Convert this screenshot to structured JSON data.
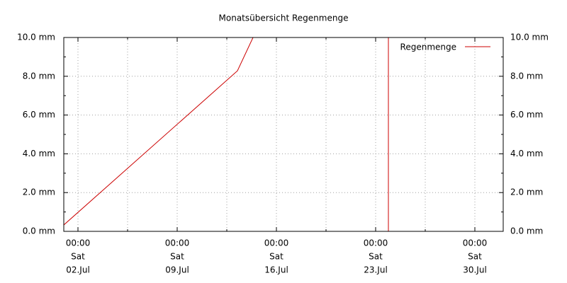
{
  "chart_data": {
    "type": "line",
    "title": "Monatsübersicht Regenmenge",
    "x": [
      1,
      13.25,
      14.35,
      19,
      23.9,
      23.9
    ],
    "series": [
      {
        "name": "Regenmenge",
        "color": "#cc0000",
        "values": [
          0.33,
          8.28,
          10,
          null,
          10,
          0
        ]
      }
    ],
    "xlim": [
      1,
      32
    ],
    "xticks": [
      {
        "value": 2,
        "label": [
          "00:00",
          "Sat",
          "02.Jul"
        ]
      },
      {
        "value": 9,
        "label": [
          "00:00",
          "Sat",
          "09.Jul"
        ]
      },
      {
        "value": 16,
        "label": [
          "00:00",
          "Sat",
          "16.Jul"
        ]
      },
      {
        "value": 23,
        "label": [
          "00:00",
          "Sat",
          "23.Jul"
        ]
      },
      {
        "value": 30,
        "label": [
          "00:00",
          "Sat",
          "30.Jul"
        ]
      }
    ],
    "x_minor_ticks": [
      5.5,
      12.5,
      19.5,
      26.5
    ],
    "ylim": [
      0,
      10
    ],
    "yticks": [
      {
        "value": 0,
        "label": "0.0 mm"
      },
      {
        "value": 2,
        "label": "2.0 mm"
      },
      {
        "value": 4,
        "label": "4.0 mm"
      },
      {
        "value": 6,
        "label": "6.0 mm"
      },
      {
        "value": 8,
        "label": "8.0 mm"
      },
      {
        "value": 10,
        "label": "10.0 mm"
      }
    ],
    "y_minor_ticks": [
      1,
      3,
      5,
      7,
      9
    ],
    "grid": true,
    "legend": "top-right"
  }
}
